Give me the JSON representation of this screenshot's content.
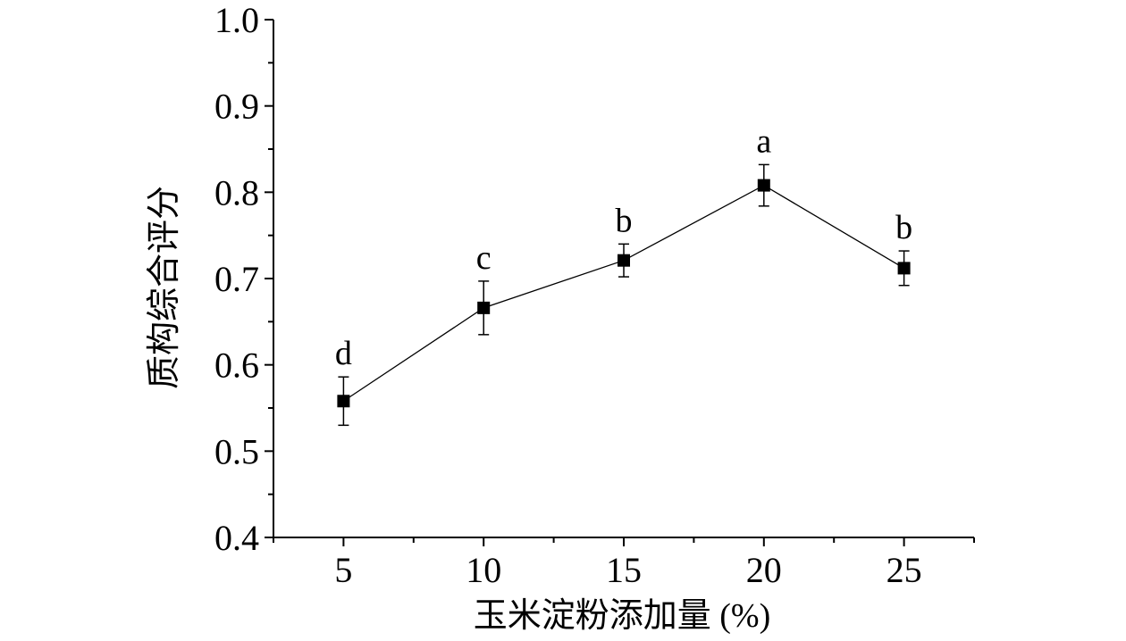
{
  "chart_data": {
    "type": "line",
    "title": "",
    "xlabel": "玉米淀粉添加量 (%)",
    "ylabel": "质构综合评分",
    "x": [
      5,
      10,
      15,
      20,
      25
    ],
    "x_tick_labels": [
      "5",
      "10",
      "15",
      "20",
      "25"
    ],
    "xlim": [
      2.5,
      27.5
    ],
    "ylim": [
      0.4,
      1.0
    ],
    "y_ticks": [
      0.4,
      0.5,
      0.6,
      0.7,
      0.8,
      0.9,
      1.0
    ],
    "y_tick_labels": [
      "0.4",
      "0.5",
      "0.6",
      "0.7",
      "0.8",
      "0.9",
      "1.0"
    ],
    "series": [
      {
        "values": [
          0.558,
          0.666,
          0.721,
          0.808,
          0.712
        ],
        "errors": [
          0.028,
          0.031,
          0.019,
          0.024,
          0.02
        ],
        "significance_labels": [
          "d",
          "c",
          "b",
          "a",
          "b"
        ],
        "marker": "square",
        "color": "#000000"
      }
    ],
    "grid": false,
    "legend": "none"
  }
}
